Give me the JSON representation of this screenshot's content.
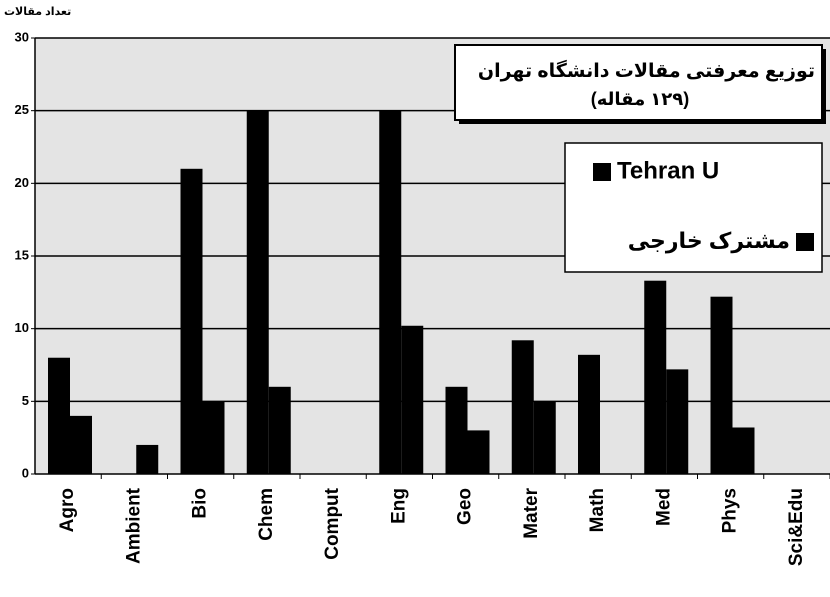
{
  "chart_data": {
    "type": "bar",
    "title": "توزیع معرفتی مقالات دانشگاه تهران",
    "subtitle": "(۱۲۹ مقاله)",
    "y_axis_title": "تعداد مقالات",
    "categories": [
      "Agro",
      "Ambient",
      "Bio",
      "Chem",
      "Comput",
      "Eng",
      "Geo",
      "Mater",
      "Math",
      "Med",
      "Phys",
      "Sci&Edu"
    ],
    "series": [
      {
        "name": "Tehran U",
        "color": "#000000",
        "values": [
          8,
          0,
          21,
          25,
          0,
          25,
          6,
          9.2,
          8.2,
          13.3,
          12.2,
          0
        ]
      },
      {
        "name": "مشترک خارجی",
        "color": "#000000",
        "values": [
          4,
          2,
          5,
          6,
          0,
          10.2,
          3,
          5,
          0,
          7.2,
          3.2,
          0
        ]
      }
    ],
    "ylim": [
      0,
      30
    ],
    "yticks": [
      0,
      5,
      10,
      15,
      20,
      25,
      30
    ],
    "grid": true
  }
}
